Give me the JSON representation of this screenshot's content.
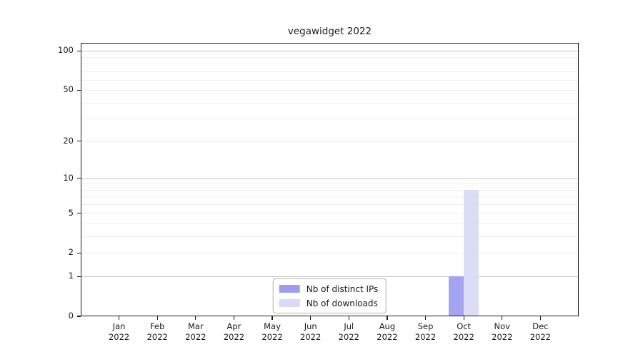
{
  "chart_data": {
    "type": "bar",
    "title": "vegawidget 2022",
    "categories": [
      "Jan 2022",
      "Feb 2022",
      "Mar 2022",
      "Apr 2022",
      "May 2022",
      "Jun 2022",
      "Jul 2022",
      "Aug 2022",
      "Sep 2022",
      "Oct 2022",
      "Nov 2022",
      "Dec 2022"
    ],
    "series": [
      {
        "name": "Nb of distinct IPs",
        "color": "#9b9df1",
        "values": [
          0,
          0,
          0,
          0,
          0,
          0,
          0,
          0,
          0,
          1,
          0,
          0
        ]
      },
      {
        "name": "Nb of downloads",
        "color": "#d8daf6",
        "values": [
          0,
          0,
          0,
          0,
          0,
          0,
          0,
          0,
          0,
          8,
          0,
          0
        ]
      }
    ],
    "xlabel": "",
    "ylabel": "",
    "yscale": "log1p",
    "ylim": [
      0,
      115
    ],
    "yticks": [
      0,
      1,
      2,
      5,
      10,
      20,
      50,
      100
    ],
    "grid": {
      "orientation": "horizontal",
      "major_values": [
        1,
        10,
        100
      ],
      "minor_values": "2-9 of each decade"
    },
    "legend_position": "inside-bottom-center"
  }
}
